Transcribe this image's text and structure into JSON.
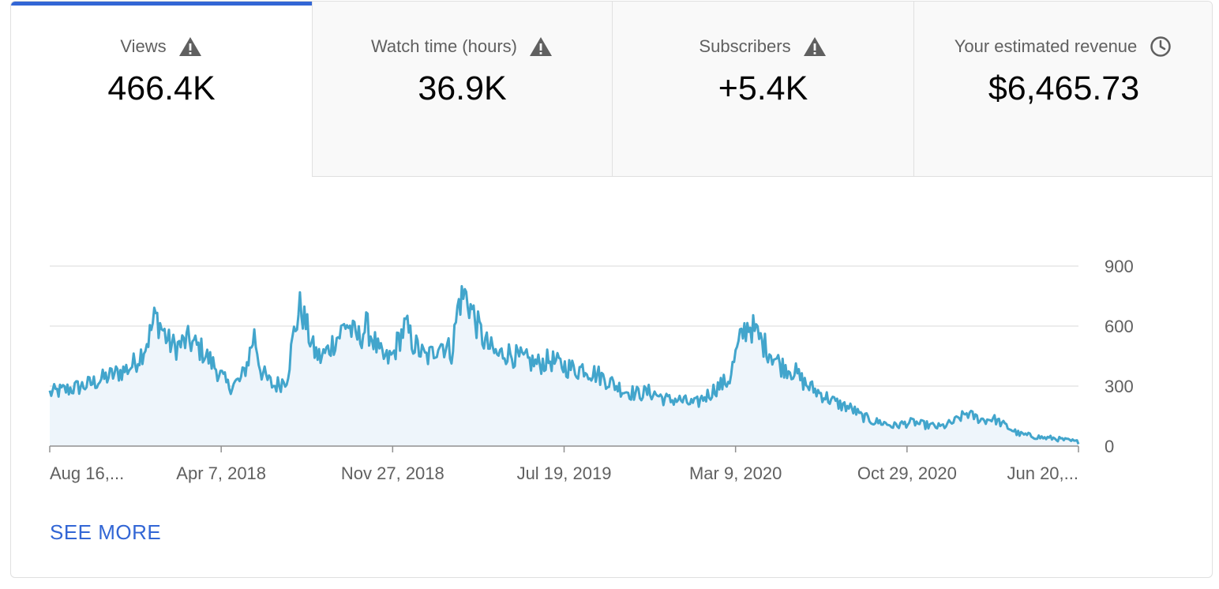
{
  "tabs": [
    {
      "label": "Views",
      "value": "466.4K",
      "icon": "warning-icon",
      "selected": true
    },
    {
      "label": "Watch time (hours)",
      "value": "36.9K",
      "icon": "warning-icon",
      "selected": false
    },
    {
      "label": "Subscribers",
      "value": "+5.4K",
      "icon": "warning-icon",
      "selected": false
    },
    {
      "label": "Your estimated revenue",
      "value": "$6,465.73",
      "icon": "clock-icon",
      "selected": false
    }
  ],
  "see_more": "SEE MORE",
  "colors": {
    "line": "#42a5cc",
    "fill": "#eef5fb",
    "accent": "#3266d5",
    "grid": "#e0e0e0"
  },
  "chart_data": {
    "type": "area",
    "title": "",
    "xlabel": "",
    "ylabel": "",
    "ylim": [
      0,
      900
    ],
    "yticks": [
      0,
      300,
      600,
      900
    ],
    "y_axis_position": "right",
    "grid": true,
    "x_tick_labels": [
      "Aug 16,...",
      "Apr 7, 2018",
      "Nov 27, 2018",
      "Jul 19, 2019",
      "Mar 9, 2020",
      "Oct 29, 2020",
      "Jun 20,..."
    ],
    "x_tick_dates": [
      "2017-08-16",
      "2018-04-07",
      "2018-11-27",
      "2019-07-19",
      "2020-03-09",
      "2020-10-29",
      "2021-06-20"
    ],
    "series": [
      {
        "values_from": "2017-08-16",
        "values_to": "2021-06-20",
        "values": [
          265,
          272,
          278,
          285,
          292,
          300,
          310,
          322,
          336,
          350,
          362,
          375,
          390,
          420,
          470,
          540,
          650,
          590,
          520,
          495,
          510,
          530,
          505,
          480,
          440,
          400,
          350,
          300,
          310,
          330,
          420,
          560,
          380,
          330,
          300,
          315,
          345,
          560,
          700,
          590,
          480,
          440,
          470,
          520,
          560,
          620,
          560,
          540,
          600,
          540,
          460,
          430,
          450,
          540,
          600,
          520,
          480,
          440,
          460,
          520,
          500,
          470,
          720,
          760,
          680,
          590,
          520,
          480,
          450,
          470,
          460,
          440,
          430,
          420,
          410,
          420,
          430,
          410,
          400,
          390,
          380,
          395,
          370,
          360,
          340,
          320,
          300,
          280,
          270,
          262,
          265,
          270,
          258,
          240,
          228,
          235,
          225,
          215,
          210,
          240,
          260,
          290,
          310,
          330,
          450,
          560,
          610,
          570,
          520,
          480,
          440,
          400,
          390,
          370,
          330,
          300,
          280,
          260,
          240,
          220,
          205,
          196,
          178,
          150,
          138,
          122,
          120,
          110,
          100,
          108,
          115,
          120,
          110,
          105,
          100,
          95,
          105,
          120,
          140,
          165,
          150,
          135,
          130,
          140,
          120,
          100,
          80,
          60,
          55,
          50,
          45,
          40,
          40,
          35,
          30,
          25,
          20
        ]
      }
    ]
  }
}
